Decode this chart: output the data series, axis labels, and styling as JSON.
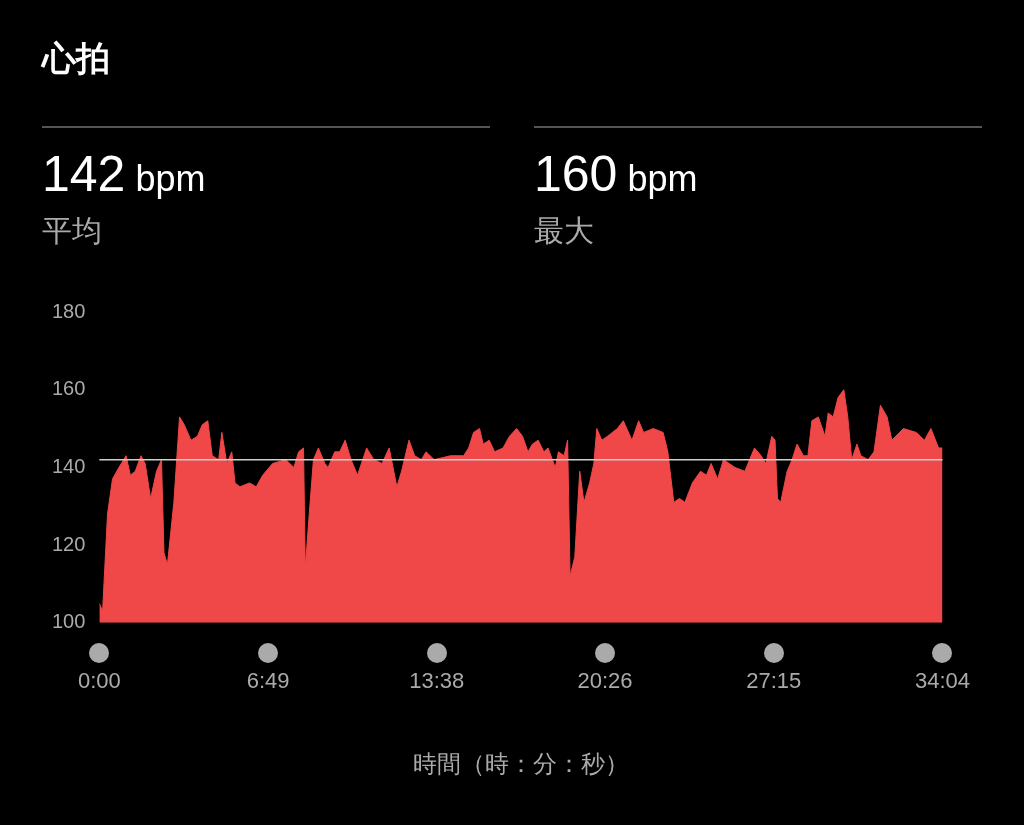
{
  "chart_data": {
    "type": "area",
    "title": "心拍",
    "annotations": [
      "142 bpm",
      "平均",
      "160 bpm",
      "最大"
    ],
    "xlabel": "時間（時：分：秒）",
    "xlim": [
      0,
      34.067
    ],
    "xticks": [
      {
        "value": 0,
        "label": "0:00"
      },
      {
        "value": 6.817,
        "label": "6:49"
      },
      {
        "value": 13.633,
        "label": "13:38"
      },
      {
        "value": 20.433,
        "label": "20:26"
      },
      {
        "value": 27.25,
        "label": "27:15"
      },
      {
        "value": 34.067,
        "label": "34:04"
      }
    ],
    "ylim": [
      100,
      180
    ],
    "yticks": [
      100,
      120,
      140,
      160,
      180
    ],
    "grid": false,
    "legend": false,
    "marker": "none",
    "ref_lines": [
      {
        "axis": "y",
        "value": 142,
        "color": "#d0d0d0"
      }
    ],
    "series": [
      {
        "color": "#f04848",
        "x": [
          0,
          0.13,
          0.33,
          0.53,
          0.79,
          1.08,
          1.25,
          1.45,
          1.68,
          1.85,
          2.07,
          2.31,
          2.51,
          2.61,
          2.75,
          3.01,
          3.24,
          3.43,
          3.7,
          3.96,
          4.16,
          4.38,
          4.56,
          4.82,
          4.95,
          5.15,
          5.35,
          5.48,
          5.68,
          6.07,
          6.34,
          6.6,
          7,
          7.53,
          7.86,
          8.05,
          8.25,
          8.32,
          8.48,
          8.65,
          8.85,
          9.11,
          9.24,
          9.51,
          9.71,
          9.93,
          10.17,
          10.43,
          10.8,
          11.09,
          11.42,
          11.71,
          12.02,
          12.21,
          12.51,
          12.74,
          13.01,
          13.2,
          13.53,
          14.19,
          14.72,
          14.92,
          15.12,
          15.36,
          15.51,
          15.75,
          15.97,
          16.31,
          16.57,
          16.86,
          17.1,
          17.32,
          17.5,
          17.73,
          17.96,
          18.13,
          18.42,
          18.55,
          18.78,
          18.92,
          19.02,
          19.21,
          19.41,
          19.58,
          19.81,
          19.98,
          20.1,
          20.3,
          20.53,
          20.93,
          21.17,
          21.52,
          21.79,
          21.99,
          22.38,
          22.78,
          22.97,
          23.21,
          23.44,
          23.66,
          23.96,
          24.29,
          24.53,
          24.72,
          24.98,
          25.22,
          25.68,
          26.08,
          26.47,
          26.74,
          26.93,
          27.17,
          27.3,
          27.4,
          27.53,
          27.79,
          27.99,
          28.19,
          28.45,
          28.63,
          28.79,
          29.05,
          29.32,
          29.45,
          29.65,
          29.85,
          30.08,
          30.24,
          30.4,
          30.61,
          30.77,
          31.06,
          31.3,
          31.56,
          31.83,
          32.02,
          32.49,
          33.01,
          33.34,
          33.6,
          33.91,
          34.067
        ],
        "values": [
          105,
          103,
          128,
          137,
          140,
          143,
          138,
          139,
          143,
          141,
          132,
          139,
          142,
          118,
          115,
          131,
          153,
          151,
          147,
          148,
          151,
          152,
          143,
          142,
          149,
          141,
          144,
          136,
          135,
          136,
          135,
          138,
          141,
          142,
          140,
          144,
          145,
          114,
          128,
          142,
          145,
          141,
          140,
          144,
          144,
          147,
          142,
          138,
          145,
          142,
          141,
          145,
          135,
          139,
          147,
          143,
          142,
          144,
          142,
          143,
          143,
          145,
          149,
          150,
          146,
          147,
          144,
          145,
          148,
          150,
          148,
          144,
          146,
          147,
          144,
          145,
          140,
          144,
          143,
          147,
          112,
          117,
          139,
          131,
          136,
          141,
          150,
          147,
          148,
          150,
          152,
          147,
          152,
          149,
          150,
          149,
          144,
          131,
          132,
          131,
          136,
          139,
          138,
          141,
          137,
          142,
          140,
          139,
          145,
          143,
          141,
          148,
          147,
          132,
          131,
          139,
          142,
          146,
          143,
          143,
          152,
          153,
          148,
          154,
          153,
          158,
          160,
          153,
          142,
          146,
          143,
          142,
          144,
          156,
          153,
          147,
          150,
          149,
          147,
          150,
          145,
          145
        ]
      }
    ]
  }
}
